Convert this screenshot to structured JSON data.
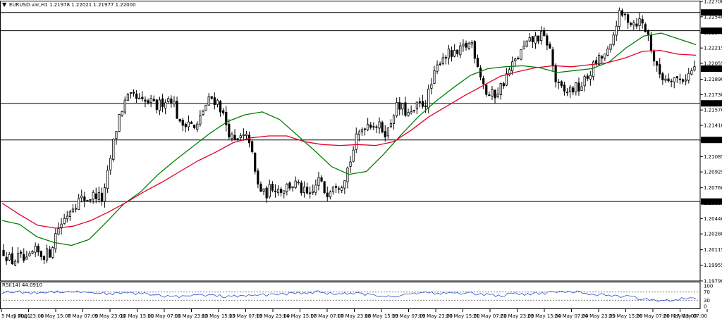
{
  "header": {
    "symbol_line": "EURUSD.var,H1  1.21978 1.22021 1.21977 1.22000"
  },
  "rsi_panel": {
    "label": "RSI(14) 44.0910",
    "scale_labels": [
      "100",
      "70",
      "30",
      "0"
    ]
  },
  "colors": {
    "background": "#ffffff",
    "candles": "#000000",
    "ma_fast": "#008000",
    "ma_slow": "#e0002a",
    "rsi": "#2a4fd6",
    "level_lines": "#000000"
  },
  "chart_data": {
    "type": "line",
    "title": "",
    "xlabel": "",
    "ylabel": "",
    "ylim": [
      1.1979,
      1.227
    ],
    "price_ticks": [
      "1.22700",
      "1.22540",
      "1.22375",
      "1.22215",
      "1.22055",
      "1.21890",
      "1.21730",
      "1.21570",
      "1.21410",
      "1.21250",
      "1.21085",
      "1.20925",
      "1.20760",
      "1.20600",
      "1.20440",
      "1.20280",
      "1.20115",
      "1.19955",
      "1.19790"
    ],
    "time_ticks": [
      "5 May 2021",
      "5 May 23:00",
      "6 May 15:00",
      "7 May 07:00",
      "9 May 23:00",
      "10 May 15:00",
      "11 May 07:00",
      "11 May 23:00",
      "12 May 15:00",
      "13 May 07:00",
      "13 May 23:00",
      "14 May 15:00",
      "17 May 07:00",
      "17 May 23:00",
      "18 May 15:00",
      "19 May 07:00",
      "19 May 23:00",
      "20 May 15:00",
      "21 May 07:00",
      "21 May 23:00",
      "23 May 15:00",
      "24 May 07:00",
      "24 May 23:00",
      "25 May 15:00",
      "26 May 07:00",
      "26 May 23:00",
      "27 May 07:00"
    ],
    "horizontal_levels": [
      {
        "label": "1.22585",
        "value": 1.22585
      },
      {
        "label": "1.22395",
        "value": 1.22395
      },
      {
        "label": "1.21639",
        "value": 1.21639
      },
      {
        "label": "1.21258",
        "value": 1.21258
      },
      {
        "label": "1.20617",
        "value": 1.20617
      }
    ],
    "current_price": {
      "label": "1.22000",
      "value": 1.22
    },
    "price_path": [
      1.201,
      1.1999,
      1.2004,
      1.1998,
      1.201,
      1.2006,
      1.2008,
      1.2033,
      1.2045,
      1.2058,
      1.2064,
      1.2065,
      1.2069,
      1.2063,
      1.211,
      1.215,
      1.2168,
      1.217,
      1.2164,
      1.2165,
      1.216,
      1.2168,
      1.217,
      1.214,
      1.2147,
      1.2135,
      1.2157,
      1.217,
      1.2165,
      1.2142,
      1.2122,
      1.2128,
      1.2127,
      1.208,
      1.2068,
      1.2078,
      1.2074,
      1.2078,
      1.208,
      1.2072,
      1.2065,
      1.2085,
      1.207,
      1.2082,
      1.208,
      1.21,
      1.2128,
      1.2142,
      1.2144,
      1.2139,
      1.2133,
      1.216,
      1.2158,
      1.215,
      1.2162,
      1.2165,
      1.219,
      1.2213,
      1.2215,
      1.2213,
      1.2223,
      1.2227,
      1.2198,
      1.2172,
      1.2173,
      1.2184,
      1.22,
      1.2212,
      1.2224,
      1.223,
      1.2234,
      1.2226,
      1.2184,
      1.2175,
      1.2179,
      1.218,
      1.219,
      1.2205,
      1.2212,
      1.2218,
      1.2255,
      1.2254,
      1.2248,
      1.225,
      1.2234,
      1.22,
      1.219,
      1.2192,
      1.2188,
      1.2192,
      1.22
    ],
    "series": [
      {
        "values": [
          1.2042,
          1.2038,
          1.2025,
          1.2019,
          1.2016,
          1.2022,
          1.204,
          1.2059,
          1.2072,
          1.209,
          1.2105,
          1.2119,
          1.2133,
          1.2145,
          1.2152,
          1.2155,
          1.2147,
          1.2131,
          1.2115,
          1.2098,
          1.209,
          1.2093,
          1.2111,
          1.2131,
          1.215,
          1.2166,
          1.218,
          1.2193,
          1.22,
          1.2202,
          1.2203,
          1.2201,
          1.2196,
          1.2198,
          1.22,
          1.2207,
          1.2222,
          1.2234,
          1.2237,
          1.2231,
          1.2225
        ]
      },
      {
        "values": [
          1.206,
          1.2048,
          1.2037,
          1.2034,
          1.2036,
          1.2042,
          1.2051,
          1.2061,
          1.2072,
          1.2082,
          1.2093,
          1.2104,
          1.2113,
          1.2123,
          1.2128,
          1.213,
          1.213,
          1.2124,
          1.2121,
          1.212,
          1.2121,
          1.212,
          1.2124,
          1.2136,
          1.215,
          1.2161,
          1.2172,
          1.2182,
          1.2192,
          1.2197,
          1.2201,
          1.2203,
          1.2202,
          1.2204,
          1.2206,
          1.2211,
          1.2218,
          1.2219,
          1.2215,
          1.2214
        ]
      }
    ],
    "rsi": {
      "range": [
        0,
        100
      ],
      "levels": [
        70,
        30
      ],
      "values": [
        70,
        71,
        65,
        68,
        72,
        73,
        70,
        68,
        63,
        62,
        65,
        60,
        52,
        50,
        48,
        55,
        52,
        50,
        48,
        52,
        56,
        60,
        62,
        66,
        70,
        64,
        60,
        62,
        57,
        52,
        48,
        60,
        70,
        65,
        62,
        66,
        62,
        58,
        52,
        60,
        58,
        64,
        66,
        72,
        70,
        60,
        55,
        52,
        45,
        36,
        30,
        31,
        38,
        44
      ]
    },
    "grid": false,
    "legend": "none"
  }
}
